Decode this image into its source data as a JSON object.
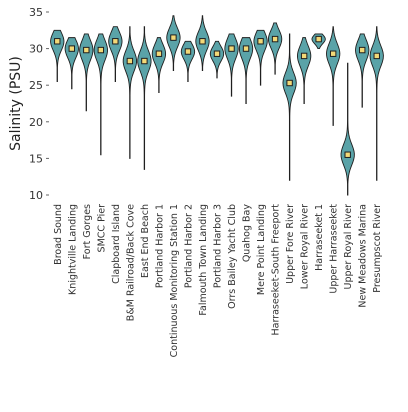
{
  "chart_data": {
    "type": "violin",
    "ylabel": "Salinity (PSU)",
    "xlabel": "",
    "ylim": [
      10,
      35
    ],
    "yticks": [
      10,
      15,
      20,
      25,
      30,
      35
    ],
    "grid": false,
    "colors": {
      "violin_fill": "#5aa3a8",
      "violin_stroke": "#1f1f1f",
      "median_fill": "#f3d978",
      "median_stroke": "#1f1f1f"
    },
    "categories": [
      "Broad Sound",
      "Knightville Landing",
      "Fort Gorges",
      "SMCC Pier",
      "Clapboard Island",
      "B&M Railroad/Back Cove",
      "East End Beach",
      "Portland Harbor 1",
      "Continuous Monitoring Station 1",
      "Portland Harbor 2",
      "Falmouth Town Landing",
      "Portland Harbor 3",
      "Orrs Bailey Yacht Club",
      "Quahog Bay",
      "Mere Point Landing",
      "Harraseeket-South Freeport",
      "Upper Fore River",
      "Lower Royal River",
      "Harraseeket 1",
      "Upper Harraseeket",
      "Upper Royal River",
      "New Meadows Marina",
      "Presumpscot River"
    ],
    "series": [
      {
        "min": 25.5,
        "max": 32.5,
        "median": 31.0
      },
      {
        "min": 24.5,
        "max": 31.5,
        "median": 30.0
      },
      {
        "min": 21.5,
        "max": 32.0,
        "median": 29.8
      },
      {
        "min": 15.5,
        "max": 32.0,
        "median": 29.8
      },
      {
        "min": 25.5,
        "max": 33.0,
        "median": 31.0
      },
      {
        "min": 15.0,
        "max": 33.0,
        "median": 28.3
      },
      {
        "min": 13.5,
        "max": 33.0,
        "median": 28.3
      },
      {
        "min": 24.0,
        "max": 31.5,
        "median": 29.3
      },
      {
        "min": 27.0,
        "max": 34.5,
        "median": 31.5
      },
      {
        "min": 25.5,
        "max": 31.0,
        "median": 29.6
      },
      {
        "min": 27.0,
        "max": 34.5,
        "median": 31.0
      },
      {
        "min": 26.0,
        "max": 31.0,
        "median": 29.3
      },
      {
        "min": 23.5,
        "max": 32.0,
        "median": 30.0
      },
      {
        "min": 22.5,
        "max": 31.5,
        "median": 30.0
      },
      {
        "min": 25.0,
        "max": 32.5,
        "median": 31.0
      },
      {
        "min": 26.5,
        "max": 33.5,
        "median": 31.3
      },
      {
        "min": 12.0,
        "max": 32.0,
        "median": 25.3
      },
      {
        "min": 22.5,
        "max": 31.5,
        "median": 29.0
      },
      {
        "min": 30.0,
        "max": 32.0,
        "median": 31.3
      },
      {
        "min": 19.5,
        "max": 33.0,
        "median": 29.3
      },
      {
        "min": 10.0,
        "max": 28.0,
        "median": 15.5
      },
      {
        "min": 22.0,
        "max": 32.0,
        "median": 29.8
      },
      {
        "min": 12.0,
        "max": 33.0,
        "median": 29.0
      }
    ]
  }
}
